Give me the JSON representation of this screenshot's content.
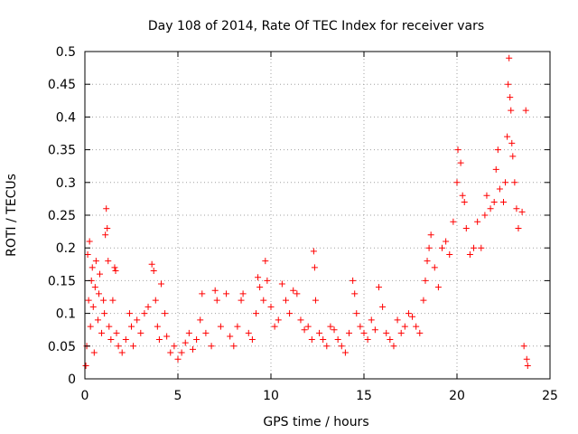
{
  "chart_data": {
    "type": "scatter",
    "title": "Day 108 of 2014, Rate Of TEC Index for receiver vars",
    "xlabel": "GPS time / hours",
    "ylabel": "ROTI / TECUs",
    "xlim": [
      0,
      25
    ],
    "ylim": [
      0,
      0.5
    ],
    "x_ticks": [
      0,
      5,
      10,
      15,
      20,
      25
    ],
    "x_tick_labels": [
      "0",
      "5",
      "10",
      "15",
      "20",
      "25"
    ],
    "y_ticks": [
      0,
      0.05,
      0.1,
      0.15,
      0.2,
      0.25,
      0.3,
      0.35,
      0.4,
      0.45,
      0.5
    ],
    "y_tick_labels": [
      "0",
      "0.05",
      "0.1",
      "0.15",
      "0.2",
      "0.25",
      "0.3",
      "0.35",
      "0.4",
      "0.45",
      "0.5"
    ],
    "grid": true,
    "marker": "+",
    "marker_color": "#ff0000",
    "series": [
      {
        "name": "ROTI",
        "points": [
          [
            0.05,
            0.02
          ],
          [
            0.1,
            0.05
          ],
          [
            0.15,
            0.19
          ],
          [
            0.2,
            0.12
          ],
          [
            0.25,
            0.21
          ],
          [
            0.3,
            0.08
          ],
          [
            0.35,
            0.15
          ],
          [
            0.4,
            0.17
          ],
          [
            0.45,
            0.11
          ],
          [
            0.5,
            0.04
          ],
          [
            0.55,
            0.14
          ],
          [
            0.6,
            0.18
          ],
          [
            0.7,
            0.09
          ],
          [
            0.75,
            0.13
          ],
          [
            0.8,
            0.16
          ],
          [
            0.9,
            0.07
          ],
          [
            1.0,
            0.12
          ],
          [
            1.05,
            0.1
          ],
          [
            1.1,
            0.22
          ],
          [
            1.15,
            0.26
          ],
          [
            1.2,
            0.23
          ],
          [
            1.25,
            0.18
          ],
          [
            1.3,
            0.08
          ],
          [
            1.4,
            0.06
          ],
          [
            1.5,
            0.12
          ],
          [
            1.6,
            0.17
          ],
          [
            1.65,
            0.165
          ],
          [
            1.7,
            0.07
          ],
          [
            1.8,
            0.05
          ],
          [
            2.0,
            0.04
          ],
          [
            2.2,
            0.06
          ],
          [
            2.4,
            0.1
          ],
          [
            2.5,
            0.08
          ],
          [
            2.6,
            0.05
          ],
          [
            2.8,
            0.09
          ],
          [
            3.0,
            0.07
          ],
          [
            3.2,
            0.1
          ],
          [
            3.4,
            0.11
          ],
          [
            3.6,
            0.175
          ],
          [
            3.7,
            0.165
          ],
          [
            3.8,
            0.12
          ],
          [
            3.9,
            0.08
          ],
          [
            4.0,
            0.06
          ],
          [
            4.1,
            0.145
          ],
          [
            4.3,
            0.1
          ],
          [
            4.4,
            0.065
          ],
          [
            4.6,
            0.04
          ],
          [
            4.8,
            0.05
          ],
          [
            5.0,
            0.03
          ],
          [
            5.2,
            0.04
          ],
          [
            5.4,
            0.055
          ],
          [
            5.6,
            0.07
          ],
          [
            5.8,
            0.045
          ],
          [
            6.0,
            0.06
          ],
          [
            6.2,
            0.09
          ],
          [
            6.3,
            0.13
          ],
          [
            6.5,
            0.07
          ],
          [
            6.8,
            0.05
          ],
          [
            7.0,
            0.135
          ],
          [
            7.1,
            0.12
          ],
          [
            7.3,
            0.08
          ],
          [
            7.6,
            0.13
          ],
          [
            7.8,
            0.065
          ],
          [
            8.0,
            0.05
          ],
          [
            8.2,
            0.08
          ],
          [
            8.4,
            0.12
          ],
          [
            8.5,
            0.13
          ],
          [
            8.8,
            0.07
          ],
          [
            9.0,
            0.06
          ],
          [
            9.2,
            0.1
          ],
          [
            9.3,
            0.155
          ],
          [
            9.4,
            0.14
          ],
          [
            9.6,
            0.12
          ],
          [
            9.7,
            0.18
          ],
          [
            9.8,
            0.15
          ],
          [
            10.0,
            0.11
          ],
          [
            10.2,
            0.08
          ],
          [
            10.4,
            0.09
          ],
          [
            10.6,
            0.145
          ],
          [
            10.8,
            0.12
          ],
          [
            11.0,
            0.1
          ],
          [
            11.2,
            0.135
          ],
          [
            11.4,
            0.13
          ],
          [
            11.6,
            0.09
          ],
          [
            11.8,
            0.075
          ],
          [
            12.0,
            0.08
          ],
          [
            12.2,
            0.06
          ],
          [
            12.3,
            0.195
          ],
          [
            12.35,
            0.17
          ],
          [
            12.4,
            0.12
          ],
          [
            12.6,
            0.07
          ],
          [
            12.8,
            0.06
          ],
          [
            13.0,
            0.05
          ],
          [
            13.2,
            0.08
          ],
          [
            13.4,
            0.075
          ],
          [
            13.6,
            0.06
          ],
          [
            13.8,
            0.05
          ],
          [
            14.0,
            0.04
          ],
          [
            14.2,
            0.07
          ],
          [
            14.4,
            0.15
          ],
          [
            14.5,
            0.13
          ],
          [
            14.6,
            0.1
          ],
          [
            14.8,
            0.08
          ],
          [
            15.0,
            0.07
          ],
          [
            15.2,
            0.06
          ],
          [
            15.4,
            0.09
          ],
          [
            15.6,
            0.075
          ],
          [
            15.8,
            0.14
          ],
          [
            16.0,
            0.11
          ],
          [
            16.2,
            0.07
          ],
          [
            16.4,
            0.06
          ],
          [
            16.6,
            0.05
          ],
          [
            16.8,
            0.09
          ],
          [
            17.0,
            0.07
          ],
          [
            17.2,
            0.08
          ],
          [
            17.4,
            0.1
          ],
          [
            17.6,
            0.095
          ],
          [
            17.8,
            0.08
          ],
          [
            18.0,
            0.07
          ],
          [
            18.2,
            0.12
          ],
          [
            18.3,
            0.15
          ],
          [
            18.4,
            0.18
          ],
          [
            18.5,
            0.2
          ],
          [
            18.6,
            0.22
          ],
          [
            18.8,
            0.17
          ],
          [
            19.0,
            0.14
          ],
          [
            19.2,
            0.2
          ],
          [
            19.4,
            0.21
          ],
          [
            19.6,
            0.19
          ],
          [
            19.8,
            0.24
          ],
          [
            20.0,
            0.3
          ],
          [
            20.05,
            0.35
          ],
          [
            20.2,
            0.33
          ],
          [
            20.3,
            0.28
          ],
          [
            20.4,
            0.27
          ],
          [
            20.5,
            0.23
          ],
          [
            20.7,
            0.19
          ],
          [
            20.9,
            0.2
          ],
          [
            21.1,
            0.24
          ],
          [
            21.3,
            0.2
          ],
          [
            21.5,
            0.25
          ],
          [
            21.6,
            0.28
          ],
          [
            21.8,
            0.26
          ],
          [
            22.0,
            0.27
          ],
          [
            22.1,
            0.32
          ],
          [
            22.2,
            0.35
          ],
          [
            22.3,
            0.29
          ],
          [
            22.5,
            0.27
          ],
          [
            22.6,
            0.3
          ],
          [
            22.7,
            0.37
          ],
          [
            22.75,
            0.45
          ],
          [
            22.8,
            0.49
          ],
          [
            22.85,
            0.43
          ],
          [
            22.9,
            0.41
          ],
          [
            22.95,
            0.36
          ],
          [
            23.0,
            0.34
          ],
          [
            23.1,
            0.3
          ],
          [
            23.2,
            0.26
          ],
          [
            23.3,
            0.23
          ],
          [
            23.5,
            0.255
          ],
          [
            23.7,
            0.41
          ],
          [
            23.75,
            0.03
          ],
          [
            23.8,
            0.02
          ],
          [
            23.6,
            0.05
          ]
        ]
      }
    ]
  }
}
